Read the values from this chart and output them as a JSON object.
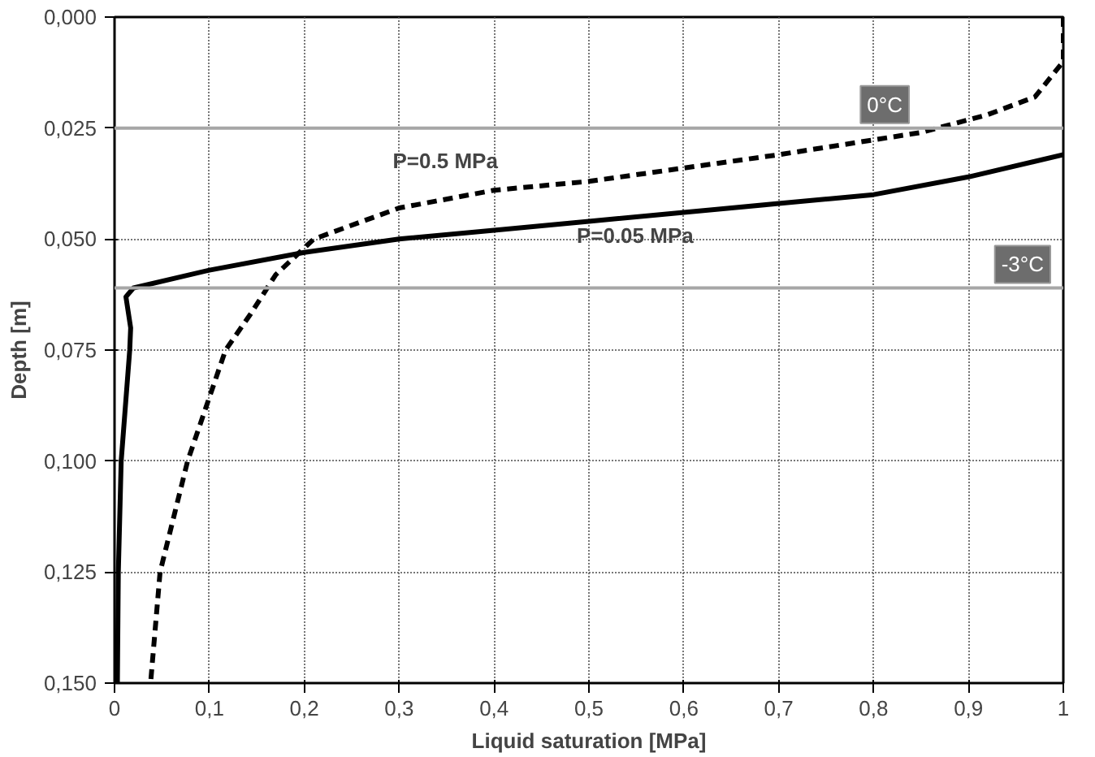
{
  "chart_data": {
    "type": "line",
    "xlabel": "Liquid saturation [MPa]",
    "ylabel": "Depth [m]",
    "xlim": [
      0,
      1
    ],
    "ylim": [
      0.15,
      0
    ],
    "xticks": [
      0,
      {
        "value": 0.1,
        "label": "0,1"
      },
      {
        "value": 0.2,
        "label": "0,2"
      },
      {
        "value": 0.3,
        "label": "0,3"
      },
      {
        "value": 0.4,
        "label": "0,4"
      },
      {
        "value": 0.5,
        "label": "0,5"
      },
      {
        "value": 0.6,
        "label": "0,6"
      },
      {
        "value": 0.7,
        "label": "0,7"
      },
      {
        "value": 0.8,
        "label": "0,8"
      },
      {
        "value": 0.9,
        "label": "0,9"
      },
      1
    ],
    "yticks": [
      {
        "value": 0,
        "label": "0,000"
      },
      {
        "value": 0.025,
        "label": "0,025"
      },
      {
        "value": 0.05,
        "label": "0,050"
      },
      {
        "value": 0.075,
        "label": "0,075"
      },
      {
        "value": 0.1,
        "label": "0,100"
      },
      {
        "value": 0.125,
        "label": "0,125"
      },
      {
        "value": 0.15,
        "label": "0,150"
      }
    ],
    "grid": true,
    "marker": "none",
    "series": [
      {
        "name": "P=0.05 MPa",
        "color": "#000000",
        "line_style": "solid",
        "x": [
          1,
          0.9,
          0.8,
          0.7,
          0.6,
          0.5,
          0.4,
          0.3,
          0.2,
          0.1,
          0.02,
          0.012,
          0.017,
          0.016,
          0.007,
          0.004,
          0.003
        ],
        "values": [
          0.031,
          0.036,
          0.04,
          0.042,
          0.044,
          0.046,
          0.048,
          0.05,
          0.053,
          0.057,
          0.061,
          0.063,
          0.07,
          0.075,
          0.1,
          0.125,
          0.15
        ]
      },
      {
        "name": "P=0.5 MPa",
        "color": "#000000",
        "line_style": "dashed",
        "x": [
          1,
          1,
          0.97,
          0.92,
          0.85,
          0.7,
          0.5,
          0.4,
          0.3,
          0.21,
          0.2,
          0.17,
          0.143,
          0.117,
          0.077,
          0.048,
          0.038
        ],
        "values": [
          0,
          0.01,
          0.018,
          0.022,
          0.026,
          0.031,
          0.037,
          0.039,
          0.043,
          0.05,
          0.052,
          0.058,
          0.067,
          0.075,
          0.1,
          0.125,
          0.15
        ]
      }
    ],
    "ref_lines": [
      {
        "axis": "y",
        "value": 0.025,
        "label": "0°C",
        "color": "#a6a6a6"
      },
      {
        "axis": "y",
        "value": 0.061,
        "label": "-3°C",
        "color": "#a6a6a6"
      }
    ]
  }
}
